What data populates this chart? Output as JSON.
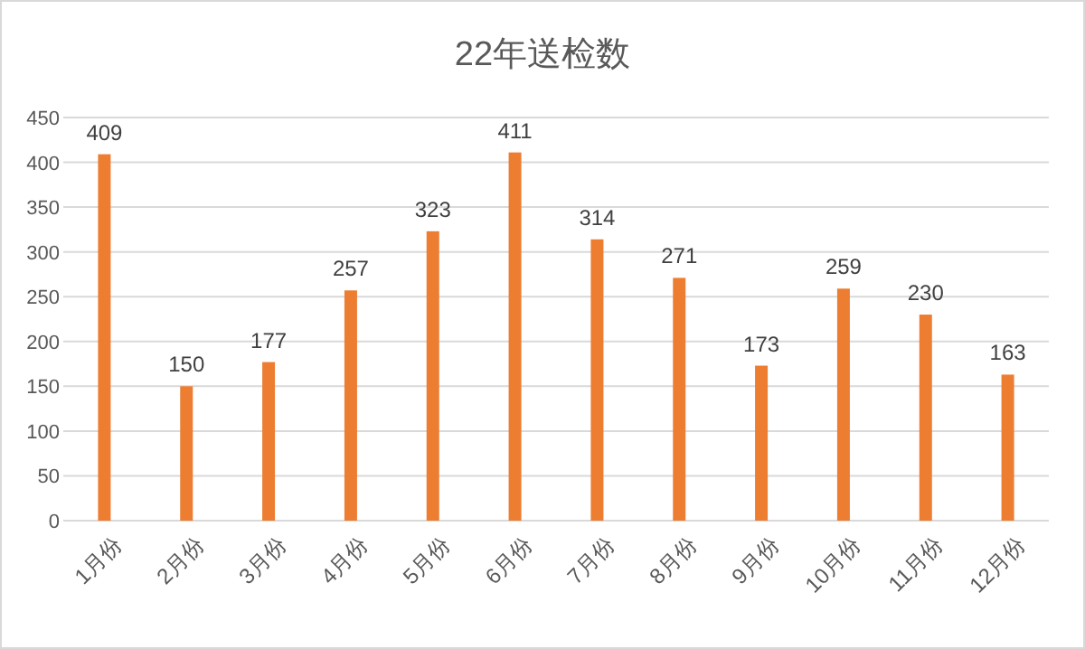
{
  "chart_data": {
    "type": "bar",
    "title": "22年送检数",
    "categories": [
      "1月份",
      "2月份",
      "3月份",
      "4月份",
      "5月份",
      "6月份",
      "7月份",
      "8月份",
      "9月份",
      "10月份",
      "11月份",
      "12月份"
    ],
    "values": [
      409,
      150,
      177,
      257,
      323,
      411,
      314,
      271,
      173,
      259,
      230,
      163
    ],
    "color": "#ed7d31",
    "ylim": [
      0,
      450
    ],
    "yticks": [
      0,
      50,
      100,
      150,
      200,
      250,
      300,
      350,
      400,
      450
    ],
    "grid": "y",
    "data_labels": true
  }
}
